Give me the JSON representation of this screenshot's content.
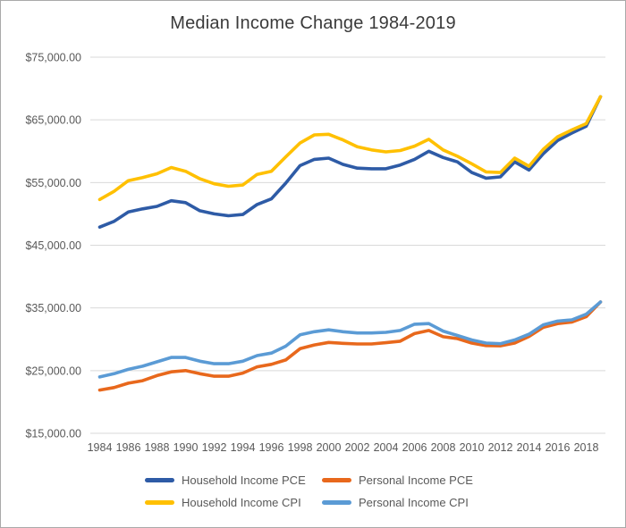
{
  "chart": {
    "title": "Median Income Change 1984-2019"
  },
  "chart_data": {
    "type": "line",
    "title": "Median Income Change 1984-2019",
    "xlabel": "",
    "ylabel": "",
    "x": [
      1984,
      1985,
      1986,
      1987,
      1988,
      1989,
      1990,
      1991,
      1992,
      1993,
      1994,
      1995,
      1996,
      1997,
      1998,
      1999,
      2000,
      2001,
      2002,
      2003,
      2004,
      2005,
      2006,
      2007,
      2008,
      2009,
      2010,
      2011,
      2012,
      2013,
      2014,
      2015,
      2016,
      2017,
      2018,
      2019
    ],
    "series": [
      {
        "name": "Household Income PCE",
        "color": "#2e5ba6",
        "values": [
          47900,
          48800,
          50300,
          50800,
          51200,
          52100,
          51800,
          50500,
          50000,
          49700,
          49900,
          51500,
          52400,
          54900,
          57700,
          58700,
          58900,
          57900,
          57300,
          57200,
          57200,
          57800,
          58700,
          60000,
          59000,
          58300,
          56600,
          55700,
          55900,
          58300,
          57000,
          59600,
          61700,
          62900,
          64000,
          68700
        ]
      },
      {
        "name": "Personal Income PCE",
        "color": "#e8681c",
        "values": [
          21900,
          22300,
          23000,
          23400,
          24200,
          24800,
          25000,
          24500,
          24100,
          24100,
          24600,
          25600,
          26000,
          26700,
          28500,
          29100,
          29500,
          29350,
          29250,
          29250,
          29450,
          29700,
          30900,
          31400,
          30400,
          30100,
          29400,
          29000,
          28950,
          29400,
          30450,
          31900,
          32500,
          32750,
          33600,
          35950
        ]
      },
      {
        "name": "Household Income CPI",
        "color": "#ffc000",
        "values": [
          52300,
          53600,
          55300,
          55800,
          56400,
          57400,
          56800,
          55600,
          54800,
          54400,
          54600,
          56300,
          56800,
          59100,
          61300,
          62600,
          62700,
          61800,
          60700,
          60200,
          59900,
          60100,
          60800,
          61900,
          60200,
          59200,
          58000,
          56700,
          56600,
          58900,
          57600,
          60300,
          62300,
          63400,
          64400,
          68700
        ]
      },
      {
        "name": "Personal Income CPI",
        "color": "#5b9bd5",
        "values": [
          24000,
          24500,
          25200,
          25700,
          26400,
          27100,
          27100,
          26500,
          26100,
          26100,
          26500,
          27400,
          27800,
          28900,
          30700,
          31200,
          31500,
          31200,
          31000,
          31000,
          31100,
          31400,
          32400,
          32500,
          31300,
          30600,
          29900,
          29400,
          29300,
          29900,
          30800,
          32300,
          32900,
          33100,
          34000,
          35950
        ]
      }
    ],
    "ylim": [
      15000,
      75000
    ],
    "ytick_interval": 10000,
    "ytick_labels": [
      "$15,000.00",
      "$25,000.00",
      "$35,000.00",
      "$45,000.00",
      "$55,000.00",
      "$65,000.00",
      "$75,000.00"
    ],
    "xtick_years": [
      1984,
      1986,
      1988,
      1990,
      1992,
      1994,
      1996,
      1998,
      2000,
      2002,
      2004,
      2006,
      2008,
      2010,
      2012,
      2014,
      2016,
      2018
    ],
    "grid": "horizontal",
    "gridline_color": "#d9d9d9",
    "axis_text_color": "#595959",
    "legend_position": "bottom"
  }
}
